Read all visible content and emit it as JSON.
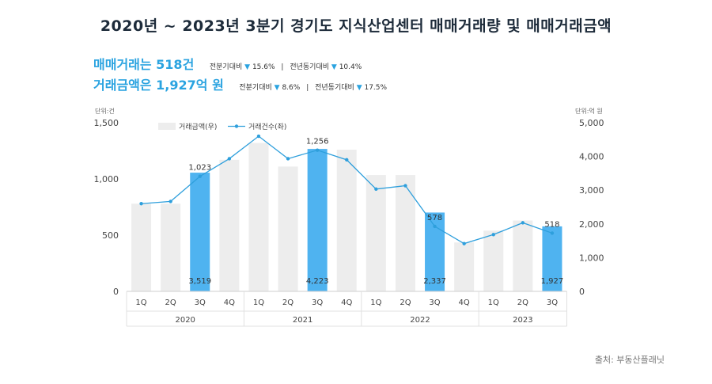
{
  "title": "2020년 ~ 2023년 3분기 경기도 지식산업센터 매매거래량 및 매매거래금액",
  "summary": {
    "line1": "매매거래는 518건",
    "line1_qoq_label": "전분기대비",
    "line1_qoq_arrow": "▼",
    "line1_qoq_value": "15.6%",
    "line1_yoy_label": "전년동기대비",
    "line1_yoy_arrow": "▼",
    "line1_yoy_value": "10.4%",
    "line2": "거래금액은 1,927억 원",
    "line2_qoq_label": "전분기대비",
    "line2_qoq_arrow": "▼",
    "line2_qoq_value": "8.6%",
    "line2_yoy_label": "전년동기대비",
    "line2_yoy_arrow": "▼",
    "line2_yoy_value": "17.5%"
  },
  "source": "출처: 부동산플래닛",
  "colors": {
    "bar_gray": "#ededed",
    "bar_blue": "#4fb3f0",
    "line": "#2e9fdc",
    "accent": "#2aa3e0"
  },
  "chart_data": {
    "type": "bar",
    "left_unit": "단위:건",
    "right_unit": "단위:억 원",
    "quarters": [
      "1Q",
      "2Q",
      "3Q",
      "4Q",
      "1Q",
      "2Q",
      "3Q",
      "4Q",
      "1Q",
      "2Q",
      "3Q",
      "4Q",
      "1Q",
      "2Q",
      "3Q"
    ],
    "years": [
      "2020",
      "2021",
      "2022",
      "2023"
    ],
    "year_spans": [
      4,
      4,
      4,
      3
    ],
    "left_ticks": [
      "0",
      "500",
      "1,000",
      "1,500"
    ],
    "left_tick_values": [
      0,
      500,
      1000,
      1500
    ],
    "right_ticks": [
      "0",
      "1,000",
      "2,000",
      "3,000",
      "4,000",
      "5,000"
    ],
    "right_tick_values": [
      0,
      1000,
      2000,
      3000,
      4000,
      5000
    ],
    "ylim_left": [
      0,
      1500
    ],
    "ylim_right": [
      0,
      5000
    ],
    "series": [
      {
        "name": "거래금액(우)",
        "axis": "right",
        "kind": "bar",
        "values": [
          2600,
          2600,
          3519,
          3900,
          4400,
          3700,
          4223,
          4200,
          3450,
          3450,
          2337,
          1450,
          1800,
          2100,
          1927
        ],
        "highlight": [
          false,
          false,
          true,
          false,
          false,
          false,
          true,
          false,
          false,
          false,
          true,
          false,
          false,
          false,
          true
        ],
        "labels": [
          "",
          "",
          "3,519",
          "",
          "",
          "",
          "4,223",
          "",
          "",
          "",
          "2,337",
          "",
          "",
          "",
          "1,927"
        ]
      },
      {
        "name": "거래건수(좌)",
        "axis": "left",
        "kind": "line",
        "values": [
          780,
          800,
          1023,
          1180,
          1380,
          1180,
          1256,
          1170,
          910,
          940,
          578,
          425,
          505,
          610,
          518
        ],
        "labels": [
          "",
          "",
          "1,023",
          "",
          "",
          "",
          "1,256",
          "",
          "",
          "",
          "578",
          "",
          "",
          "",
          "518"
        ]
      }
    ]
  }
}
